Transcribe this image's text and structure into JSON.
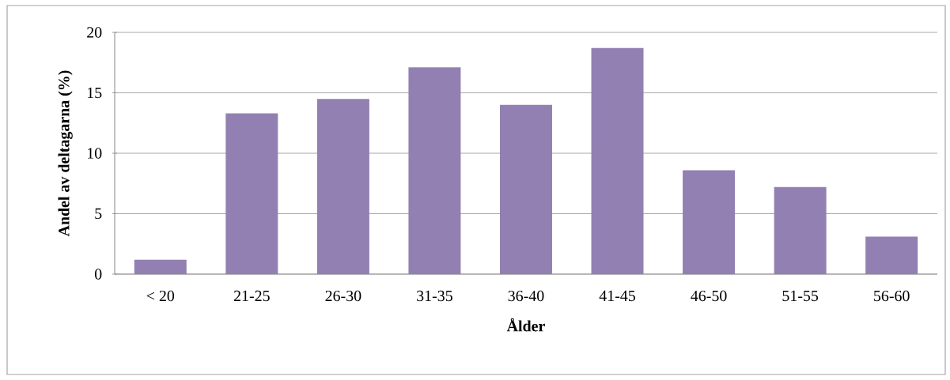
{
  "chart_data": {
    "type": "bar",
    "xlabel": "Ålder",
    "ylabel": "Andel av deltagarna (%)",
    "categories": [
      "< 20",
      "21-25",
      "26-30",
      "31-35",
      "36-40",
      "41-45",
      "46-50",
      "51-55",
      "56-60"
    ],
    "values": [
      1.2,
      13.3,
      14.5,
      17.1,
      14.0,
      18.7,
      8.6,
      7.2,
      3.1
    ],
    "color": "#9380b2",
    "ylim": [
      0,
      20
    ],
    "yticks": [
      0,
      5,
      10,
      15,
      20
    ],
    "grid": "y"
  }
}
